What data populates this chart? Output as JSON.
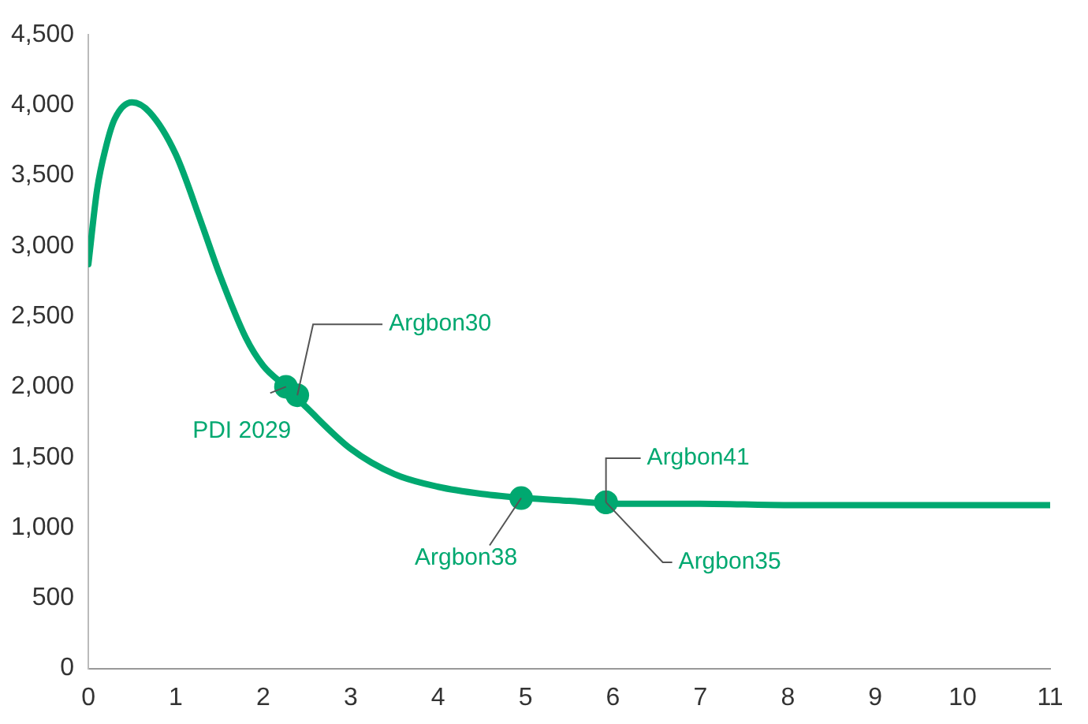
{
  "chart_data": {
    "type": "line",
    "xlim": [
      0,
      11
    ],
    "xticks": [
      0,
      1,
      2,
      3,
      4,
      5,
      6,
      7,
      8,
      9,
      10,
      11
    ],
    "ylim": [
      0,
      4500
    ],
    "yticks": [
      {
        "value": 0,
        "label": "0"
      },
      {
        "value": 500,
        "label": "500"
      },
      {
        "value": 1000,
        "label": "1,000"
      },
      {
        "value": 1500,
        "label": "1,500"
      },
      {
        "value": 2000,
        "label": "2,000"
      },
      {
        "value": 2500,
        "label": "2,500"
      },
      {
        "value": 3000,
        "label": "3,000"
      },
      {
        "value": 3500,
        "label": "3,500"
      },
      {
        "value": 4000,
        "label": "4,000"
      },
      {
        "value": 4500,
        "label": "4,500"
      }
    ],
    "grid": false,
    "legend": false,
    "series": [
      {
        "color": "#00a870",
        "marker": "none",
        "x": [
          0,
          0.1,
          0.2,
          0.3,
          0.5,
          0.7,
          1.0,
          1.3,
          1.5,
          1.8,
          2.0,
          2.26,
          2.5,
          3,
          3.5,
          4,
          4.5,
          5,
          5.5,
          6,
          7,
          8,
          9,
          10,
          11
        ],
        "values": [
          2870,
          3400,
          3700,
          3900,
          4020,
          3950,
          3650,
          3150,
          2800,
          2350,
          2150,
          2000,
          1850,
          1560,
          1380,
          1290,
          1240,
          1210,
          1190,
          1170,
          1170,
          1160,
          1160,
          1160,
          1160
        ]
      },
      {
        "type": "scatter",
        "color": "#00a870",
        "marker": "circle",
        "x": [
          2.26,
          2.39,
          4.95,
          5.92,
          5.92
        ],
        "values": [
          2000,
          1940,
          1210,
          1180,
          1180
        ]
      }
    ],
    "annotations": [
      {
        "text": "PDI 2029",
        "x": 2.26,
        "y": 2000
      },
      {
        "text": "Argbon30",
        "x": 2.39,
        "y": 1940
      },
      {
        "text": "Argbon38",
        "x": 4.95,
        "y": 1210
      },
      {
        "text": "Argbon41",
        "x": 5.92,
        "y": 1180
      },
      {
        "text": "Argbon35",
        "x": 5.92,
        "y": 1180
      }
    ]
  }
}
